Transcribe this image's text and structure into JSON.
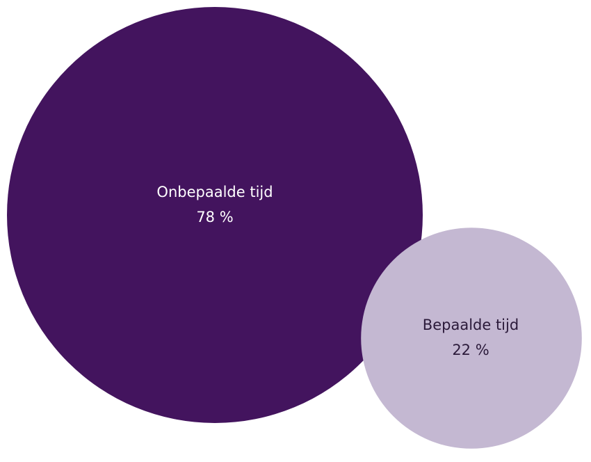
{
  "chart_data": {
    "type": "bubble",
    "series": [
      {
        "name": "Onbepaalde tijd",
        "value": 78,
        "value_label": "78 %",
        "color": "#43145e",
        "text_color": "#ffffff"
      },
      {
        "name": "Bepaalde tijd",
        "value": 22,
        "value_label": "22 %",
        "color": "#c4b8d2",
        "text_color": "#2b1a3a"
      }
    ],
    "unit": "%",
    "legend": "none"
  }
}
